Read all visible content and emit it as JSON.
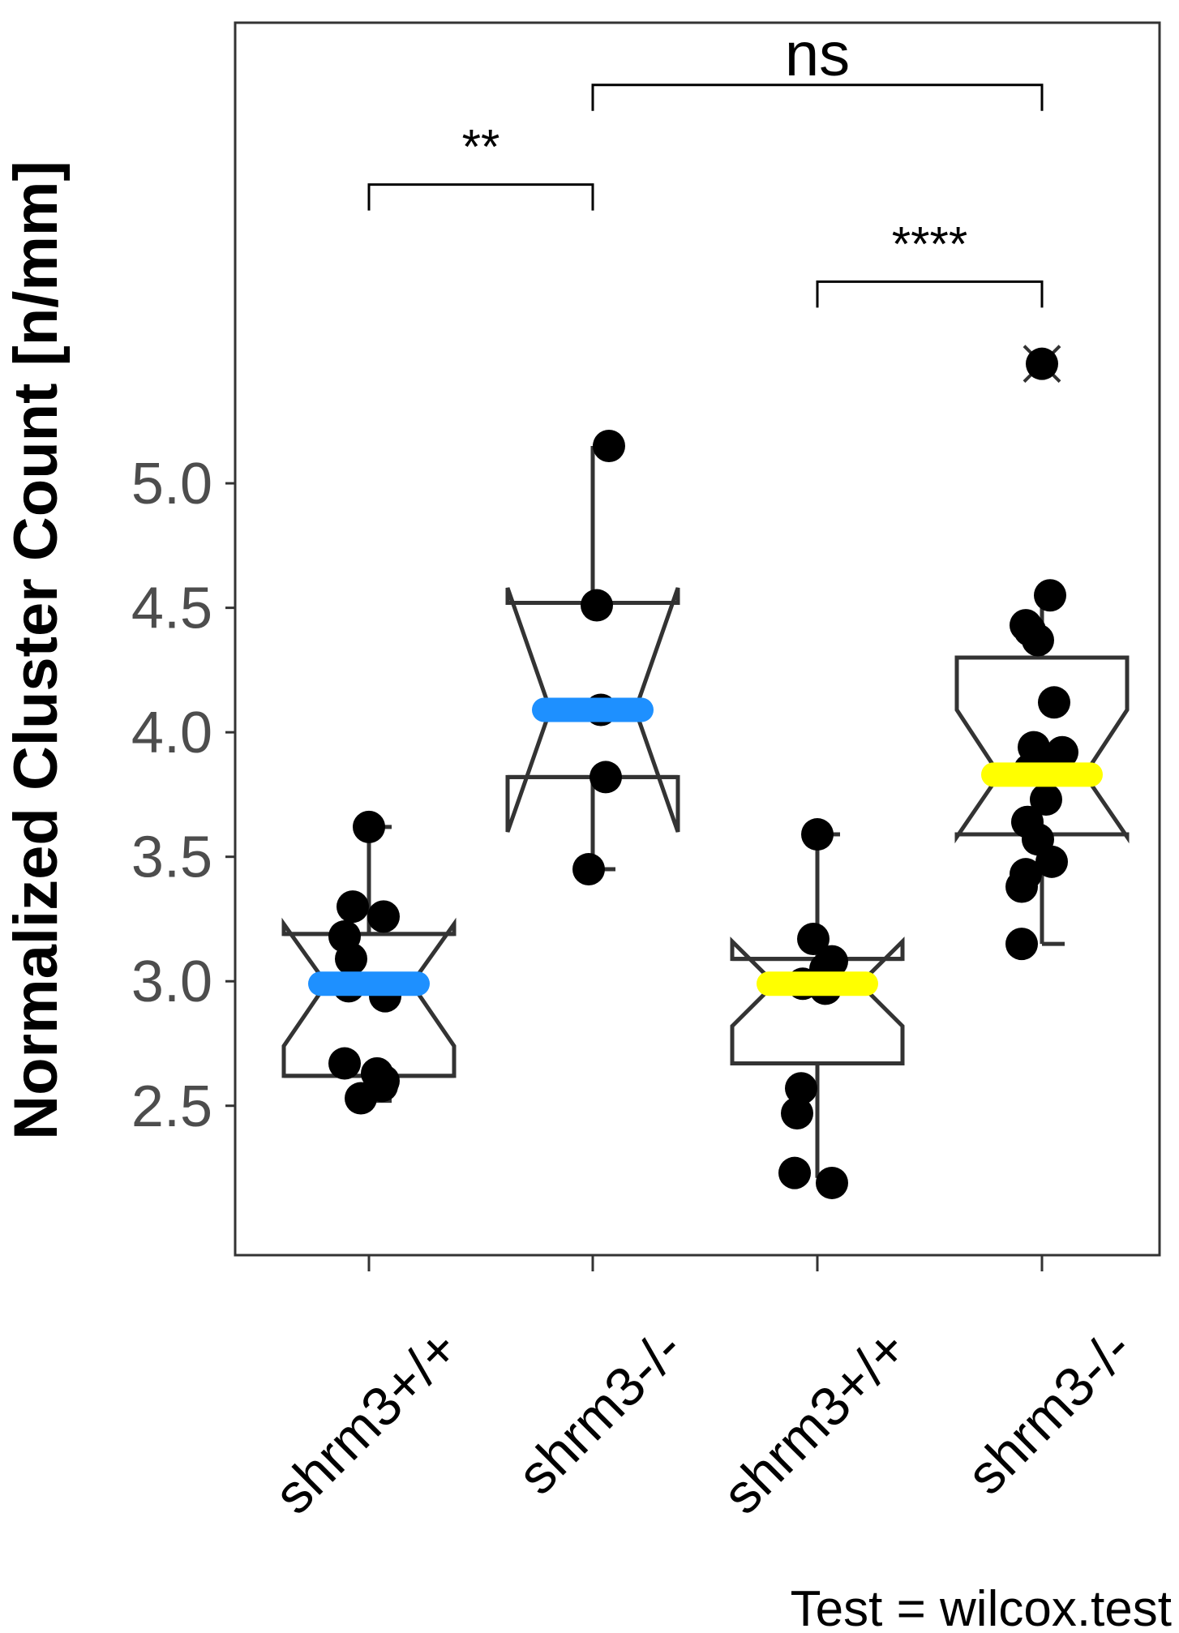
{
  "chart_data": {
    "type": "box",
    "ylabel": "Normalized Cluster Count [n/mm]",
    "xlabel": "",
    "ylim": [
      1.9,
      6.85
    ],
    "yticks": [
      2.5,
      3.0,
      3.5,
      4.0,
      4.5,
      5.0
    ],
    "ytick_labels": [
      "2.5",
      "3.0",
      "3.5",
      "4.0",
      "4.5",
      "5.0"
    ],
    "categories": [
      "shrm3+/+",
      "shrm3-/-",
      "shrm3+/+",
      "shrm3-/-"
    ],
    "grid": false,
    "groups": [
      {
        "category": "shrm3+/+",
        "median_color": "#1e90ff",
        "whisker_low": 2.52,
        "q1": 2.62,
        "median": 2.99,
        "q3": 3.19,
        "whisker_high": 3.62,
        "notch_low": 2.74,
        "notch_high": 3.23,
        "points": [
          3.62,
          3.3,
          3.26,
          3.18,
          3.09,
          2.98,
          2.94,
          2.67,
          2.63,
          2.6,
          2.58,
          2.53
        ]
      },
      {
        "category": "shrm3-/-",
        "median_color": "#1e90ff",
        "whisker_low": 3.45,
        "q1": 3.82,
        "median": 4.09,
        "q3": 4.52,
        "whisker_high": 5.15,
        "notch_low": 3.6,
        "notch_high": 4.58,
        "points": [
          5.15,
          4.51,
          4.09,
          3.82,
          3.45
        ]
      },
      {
        "category": "shrm3+/+",
        "median_color": "#ffff00",
        "whisker_low": 2.21,
        "q1": 2.67,
        "median": 2.99,
        "q3": 3.09,
        "whisker_high": 3.59,
        "notch_low": 2.82,
        "notch_high": 3.16,
        "points": [
          3.59,
          3.17,
          3.08,
          3.05,
          2.99,
          2.97,
          2.57,
          2.47,
          2.23,
          2.19
        ]
      },
      {
        "category": "shrm3-/-",
        "median_color": "#ffff00",
        "whisker_low": 3.15,
        "q1": 3.59,
        "median": 3.83,
        "q3": 4.3,
        "whisker_high": 4.55,
        "notch_low": 3.58,
        "notch_high": 4.09,
        "outlier": 5.48,
        "points": [
          5.48,
          4.55,
          4.43,
          4.41,
          4.37,
          4.12,
          3.94,
          3.92,
          3.88,
          3.85,
          3.73,
          3.64,
          3.57,
          3.48,
          3.43,
          3.38,
          3.15
        ]
      }
    ],
    "comparisons": [
      {
        "from": 0,
        "to": 1,
        "label": "**",
        "y": 6.2
      },
      {
        "from": 1,
        "to": 3,
        "label": "ns",
        "y": 6.6
      },
      {
        "from": 2,
        "to": 3,
        "label": "****",
        "y": 5.81
      }
    ],
    "caption": "Test = wilcox.test"
  }
}
